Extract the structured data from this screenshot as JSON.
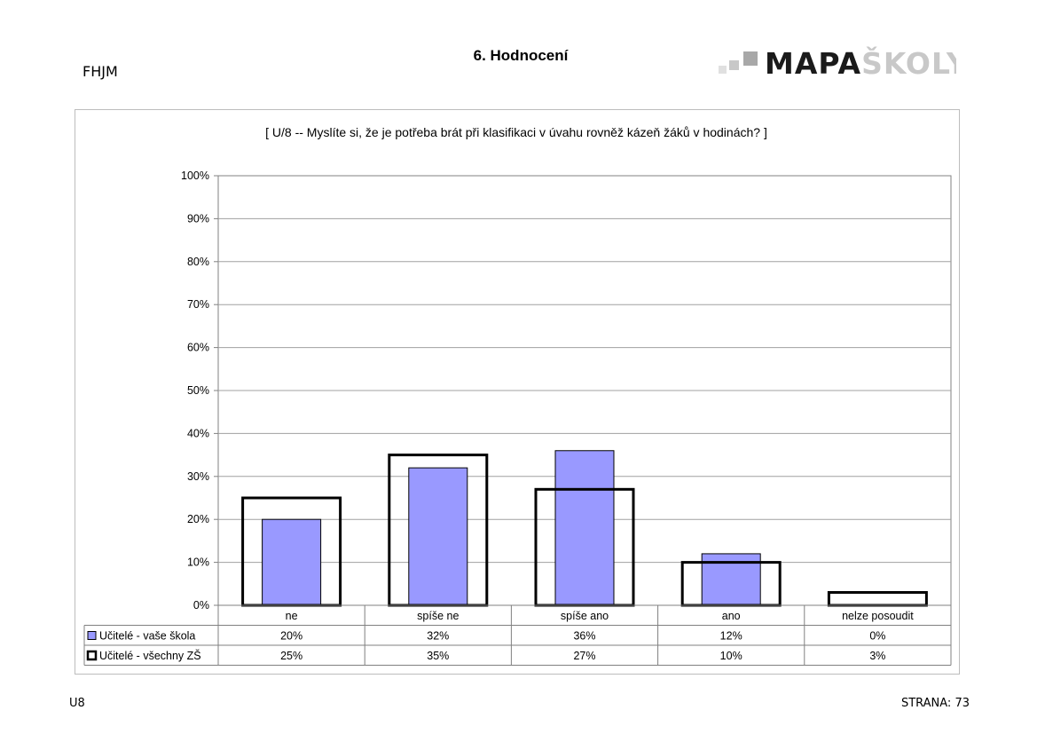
{
  "header": {
    "school_code": "FHJM",
    "section_title": "6. Hodnocení",
    "logo": {
      "part1": "MAPA",
      "part2": "ŠKOLY",
      "color_dark": "#1a1a1a",
      "color_light": "#c8c8c8"
    }
  },
  "footer": {
    "left": "U8",
    "right": "STRANA: 73"
  },
  "chart_data": {
    "type": "bar",
    "title": "[ U/8 -- Myslíte si, že je potřeba brát při klasifikaci v úvahu rovněž kázeň žáků v hodinách? ]",
    "categories": [
      "ne",
      "spíše ne",
      "spíše ano",
      "ano",
      "nelze posoudit"
    ],
    "series": [
      {
        "name": "Učitelé - vaše škola",
        "values": [
          20,
          32,
          36,
          12,
          0
        ],
        "labels": [
          "20%",
          "32%",
          "36%",
          "12%",
          "0%"
        ],
        "color": "#9999ff",
        "style": "filled"
      },
      {
        "name": "Učitelé - všechny ZŠ",
        "values": [
          25,
          35,
          27,
          10,
          3
        ],
        "labels": [
          "25%",
          "35%",
          "27%",
          "10%",
          "3%"
        ],
        "color": "#000000",
        "style": "outline"
      }
    ],
    "ylim": [
      0,
      100
    ],
    "yticks": [
      "0%",
      "10%",
      "20%",
      "30%",
      "40%",
      "50%",
      "60%",
      "70%",
      "80%",
      "90%",
      "100%"
    ],
    "grid": true,
    "legend": "data-table-below"
  }
}
